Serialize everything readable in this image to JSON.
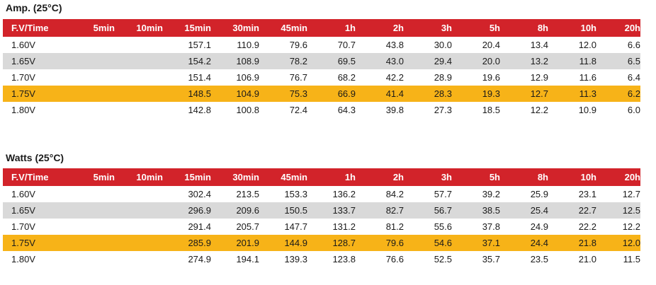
{
  "tables": [
    {
      "title": "Amp. (25°C)",
      "columns": [
        "F.V/Time",
        "5min",
        "10min",
        "15min",
        "30min",
        "45min",
        "1h",
        "2h",
        "3h",
        "5h",
        "8h",
        "10h",
        "20h"
      ],
      "rows": [
        {
          "fv": "1.60V",
          "style": "plain",
          "values": [
            "",
            "",
            "157.1",
            "110.9",
            "79.6",
            "70.7",
            "43.8",
            "30.0",
            "20.4",
            "13.4",
            "12.0",
            "6.6"
          ]
        },
        {
          "fv": "1.65V",
          "style": "gray",
          "values": [
            "",
            "",
            "154.2",
            "108.9",
            "78.2",
            "69.5",
            "43.0",
            "29.4",
            "20.0",
            "13.2",
            "11.8",
            "6.5"
          ]
        },
        {
          "fv": "1.70V",
          "style": "plain",
          "values": [
            "",
            "",
            "151.4",
            "106.9",
            "76.7",
            "68.2",
            "42.2",
            "28.9",
            "19.6",
            "12.9",
            "11.6",
            "6.4"
          ]
        },
        {
          "fv": "1.75V",
          "style": "orange",
          "values": [
            "",
            "",
            "148.5",
            "104.9",
            "75.3",
            "66.9",
            "41.4",
            "28.3",
            "19.3",
            "12.7",
            "11.3",
            "6.2"
          ]
        },
        {
          "fv": "1.80V",
          "style": "plain",
          "values": [
            "",
            "",
            "142.8",
            "100.8",
            "72.4",
            "64.3",
            "39.8",
            "27.3",
            "18.5",
            "12.2",
            "10.9",
            "6.0"
          ]
        }
      ]
    },
    {
      "title": "Watts (25°C)",
      "columns": [
        "F.V/Time",
        "5min",
        "10min",
        "15min",
        "30min",
        "45min",
        "1h",
        "2h",
        "3h",
        "5h",
        "8h",
        "10h",
        "20h"
      ],
      "rows": [
        {
          "fv": "1.60V",
          "style": "plain",
          "values": [
            "",
            "",
            "302.4",
            "213.5",
            "153.3",
            "136.2",
            "84.2",
            "57.7",
            "39.2",
            "25.9",
            "23.1",
            "12.7"
          ]
        },
        {
          "fv": "1.65V",
          "style": "gray",
          "values": [
            "",
            "",
            "296.9",
            "209.6",
            "150.5",
            "133.7",
            "82.7",
            "56.7",
            "38.5",
            "25.4",
            "22.7",
            "12.5"
          ]
        },
        {
          "fv": "1.70V",
          "style": "plain",
          "values": [
            "",
            "",
            "291.4",
            "205.7",
            "147.7",
            "131.2",
            "81.2",
            "55.6",
            "37.8",
            "24.9",
            "22.2",
            "12.2"
          ]
        },
        {
          "fv": "1.75V",
          "style": "orange",
          "values": [
            "",
            "",
            "285.9",
            "201.9",
            "144.9",
            "128.7",
            "79.6",
            "54.6",
            "37.1",
            "24.4",
            "21.8",
            "12.0"
          ]
        },
        {
          "fv": "1.80V",
          "style": "plain",
          "values": [
            "",
            "",
            "274.9",
            "194.1",
            "139.3",
            "123.8",
            "76.6",
            "52.5",
            "35.7",
            "23.5",
            "21.0",
            "11.5"
          ]
        }
      ]
    }
  ],
  "colors": {
    "header": "#d2232a",
    "gray_row": "#d9d9d9",
    "highlight_row": "#f7b318"
  }
}
